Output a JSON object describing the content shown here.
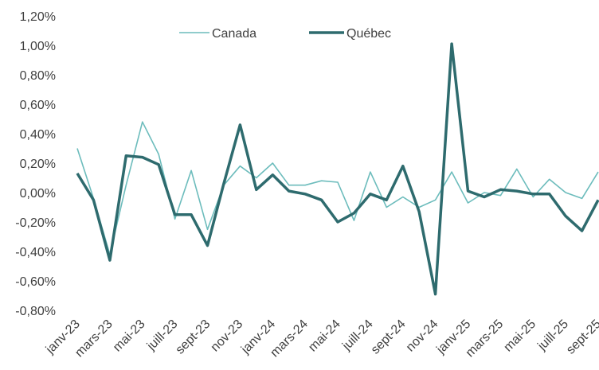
{
  "chart_data": {
    "type": "line",
    "categories": [
      "janv-23",
      null,
      "mars-23",
      null,
      "mai-23",
      null,
      "juill-23",
      null,
      "sept-23",
      null,
      "nov-23",
      null,
      "janv-24",
      null,
      "mars-24",
      null,
      "mai-24",
      null,
      "juill-24",
      null,
      "sept-24",
      null,
      "nov-24",
      null,
      "janv-25",
      null,
      "mars-25",
      null,
      "mai-25",
      null,
      "juill-25",
      null,
      "sept-25"
    ],
    "series": [
      {
        "name": "Canada",
        "color": "#6cbcbc",
        "values": [
          0.3,
          -0.04,
          -0.42,
          0.05,
          0.48,
          0.26,
          -0.18,
          0.15,
          -0.25,
          0.05,
          0.18,
          0.1,
          0.2,
          0.05,
          0.05,
          0.08,
          0.07,
          -0.19,
          0.14,
          -0.1,
          -0.03,
          -0.1,
          -0.05,
          0.14,
          -0.07,
          0.0,
          -0.02,
          0.16,
          -0.03,
          0.09,
          0.0,
          -0.04,
          0.14
        ]
      },
      {
        "name": "Québec",
        "color": "#2e6b6e",
        "values": [
          0.13,
          -0.05,
          -0.46,
          0.25,
          0.24,
          0.19,
          -0.15,
          -0.15,
          -0.36,
          0.06,
          0.46,
          0.02,
          0.12,
          0.01,
          -0.01,
          -0.05,
          -0.2,
          -0.14,
          -0.01,
          -0.05,
          0.18,
          -0.13,
          -0.69,
          1.01,
          0.01,
          -0.03,
          0.02,
          0.01,
          -0.01,
          -0.01,
          -0.16,
          -0.26,
          -0.05
        ]
      }
    ],
    "ylim": [
      -0.8,
      1.2
    ],
    "yticks": [
      {
        "value": -0.8,
        "label": "-0,80%"
      },
      {
        "value": -0.6,
        "label": "-0,60%"
      },
      {
        "value": -0.4,
        "label": "-0,40%"
      },
      {
        "value": -0.2,
        "label": "-0,20%"
      },
      {
        "value": 0,
        "label": "0,00%"
      },
      {
        "value": 0.2,
        "label": "0,20%"
      },
      {
        "value": 0.4,
        "label": "0,40%"
      },
      {
        "value": 0.6,
        "label": "0,60%"
      },
      {
        "value": 0.8,
        "label": "0,80%"
      },
      {
        "value": 1.0,
        "label": "1,00%"
      },
      {
        "value": 1.2,
        "label": "1,20%"
      }
    ],
    "legend": "top"
  }
}
